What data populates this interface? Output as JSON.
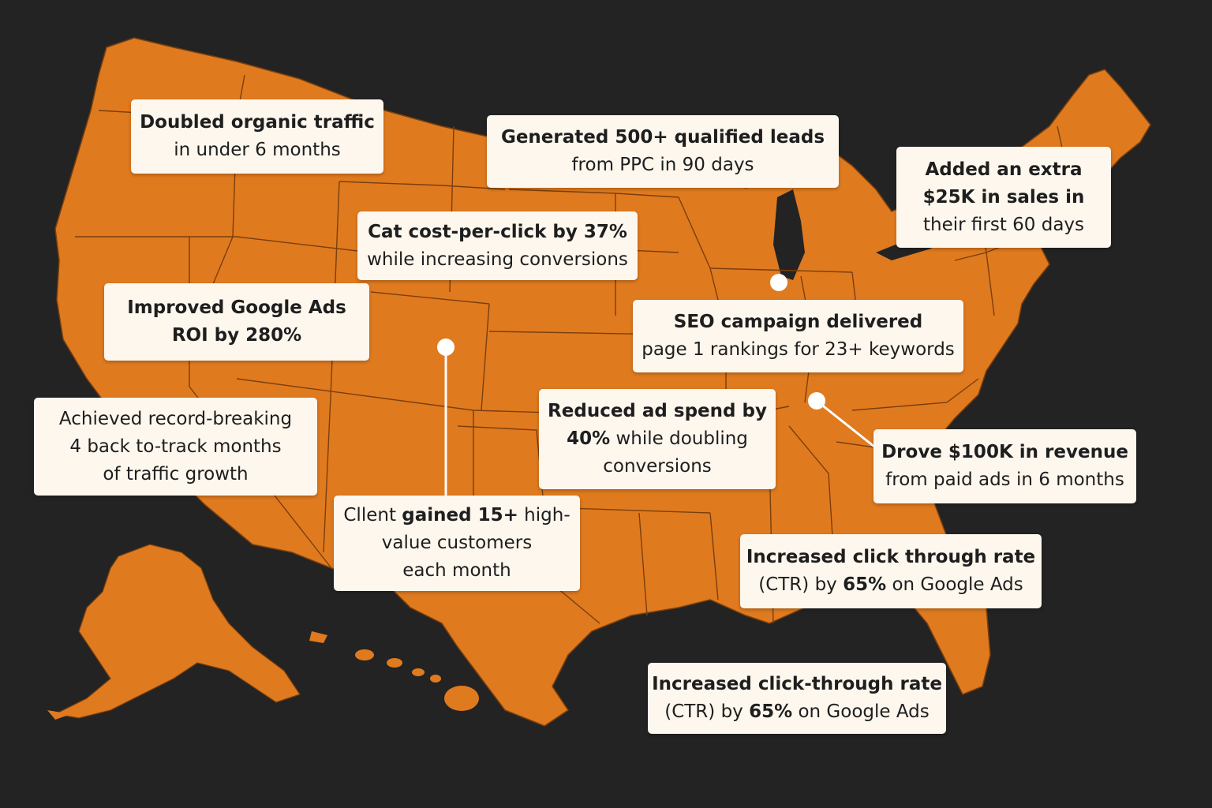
{
  "colors": {
    "background": "#232323",
    "map_fill": "#e07a1f",
    "state_border": "#7a3f0d",
    "callout_bg": "#fdf7ee",
    "text": "#1e1e1e",
    "marker": "#ffffff"
  },
  "icons": [
    "location-marker-icon"
  ],
  "callouts": {
    "doubled_traffic": {
      "line1": "Doubled organic traffic",
      "line2": "in under 6 months"
    },
    "qualified_leads": {
      "line1": "Generated 500+ qualified leads",
      "line2": "from PPC in 90 days"
    },
    "extra_sales": {
      "line1": "Added an extra",
      "line2": "$25K in sales in",
      "line3": "their first 60 days"
    },
    "cost_per_click": {
      "line1": "Cat cost-per-click by 37%",
      "line2": "while increasing conversions"
    },
    "google_ads_roi": {
      "line1": "Improved Google Ads",
      "line2": "ROI by 280%"
    },
    "seo_campaign": {
      "line1": "SEO campaign delivered",
      "line2": "page 1 rankings for 23+ keywords"
    },
    "record_breaking": {
      "line1": "Achieved record-breaking",
      "line2": "4 back to-track months",
      "line3": "of traffic growth"
    },
    "reduced_spend": {
      "line1": "Reduced ad spend by",
      "line2_bold": "40%",
      "line2_rest": " while doubling",
      "line3": "conversions"
    },
    "revenue": {
      "line1": "Drove $100K in revenue",
      "line2": "from paid ads in 6 months"
    },
    "client_gained": {
      "line1_prefix": "Cllent ",
      "line1_bold": "gained 15+",
      "line1_suffix": " high-",
      "line2": "value customers",
      "line3": "each month"
    },
    "ctr_1": {
      "line1": "Increased click through rate",
      "line2_prefix": "(CTR) by ",
      "line2_bold": "65%",
      "line2_suffix": " on Google Ads"
    },
    "ctr_2": {
      "line1": "Increased click-through rate",
      "line2_prefix": "(CTR) by ",
      "line2_bold": "65%",
      "line2_suffix": " on Google Ads"
    }
  }
}
